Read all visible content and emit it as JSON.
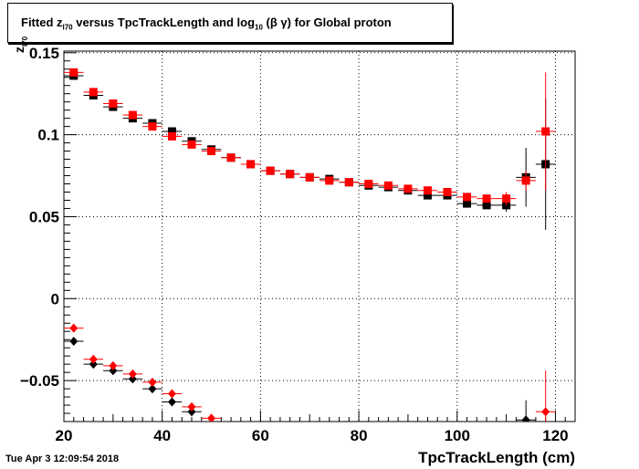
{
  "title": {
    "prefix": "Fitted  z",
    "sub1": "I70",
    "middle": "  versus TpcTrackLength and log",
    "sub2": "10",
    "suffix": " (β γ) for Global proton"
  },
  "datestamp": "Tue Apr  3 12:09:54 2018",
  "chart_data": {
    "type": "scatter",
    "xlabel": "TpcTrackLength (cm)",
    "ylabel": "z",
    "ylabel_sub": "I70",
    "xlim": [
      20,
      124
    ],
    "ylim": [
      -0.075,
      0.151
    ],
    "xticks": [
      20,
      40,
      60,
      80,
      100,
      120
    ],
    "yticks": [
      -0.05,
      0,
      0.05,
      0.1,
      0.15
    ],
    "ytick_labels": [
      "−0.05",
      "0",
      "0.05",
      "0.1",
      "0.15"
    ],
    "grid": true,
    "series": [
      {
        "marker": "square",
        "color": "#000000",
        "x": [
          22,
          26,
          30,
          34,
          38,
          42,
          46,
          50,
          54,
          58,
          62,
          66,
          70,
          74,
          78,
          82,
          86,
          90,
          94,
          98,
          102,
          106,
          110,
          114,
          118
        ],
        "y": [
          0.136,
          0.124,
          0.117,
          0.11,
          0.107,
          0.102,
          0.096,
          0.091,
          0.086,
          0.082,
          0.078,
          0.076,
          0.074,
          0.073,
          0.071,
          0.069,
          0.068,
          0.066,
          0.063,
          0.063,
          0.058,
          0.057,
          0.057,
          0.074,
          0.082
        ],
        "yerr": [
          0.001,
          0.001,
          0.001,
          0.001,
          0.001,
          0.001,
          0.001,
          0.001,
          0.001,
          0.001,
          0.001,
          0.001,
          0.001,
          0.001,
          0.001,
          0.001,
          0.001,
          0.001,
          0.001,
          0.001,
          0.002,
          0.002,
          0.004,
          0.018,
          0.04
        ]
      },
      {
        "marker": "square",
        "color": "#ff0000",
        "x": [
          22,
          26,
          30,
          34,
          38,
          42,
          46,
          50,
          54,
          58,
          62,
          66,
          70,
          74,
          78,
          82,
          86,
          90,
          94,
          98,
          102,
          106,
          110,
          114,
          118
        ],
        "y": [
          0.138,
          0.126,
          0.119,
          0.112,
          0.105,
          0.099,
          0.094,
          0.09,
          0.086,
          0.082,
          0.078,
          0.076,
          0.074,
          0.072,
          0.071,
          0.07,
          0.069,
          0.067,
          0.066,
          0.065,
          0.062,
          0.061,
          0.061,
          0.072,
          0.102
        ],
        "yerr": [
          0.001,
          0.001,
          0.001,
          0.001,
          0.001,
          0.001,
          0.001,
          0.001,
          0.001,
          0.001,
          0.001,
          0.001,
          0.001,
          0.001,
          0.001,
          0.001,
          0.001,
          0.001,
          0.001,
          0.001,
          0.002,
          0.002,
          0.004,
          0.006,
          0.036
        ]
      },
      {
        "marker": "diamond",
        "color": "#000000",
        "x": [
          22,
          26,
          30,
          34,
          38,
          42,
          46,
          114
        ],
        "y": [
          -0.026,
          -0.04,
          -0.044,
          -0.049,
          -0.055,
          -0.063,
          -0.069,
          -0.074
        ],
        "yerr": [
          0.001,
          0.001,
          0.001,
          0.001,
          0.001,
          0.001,
          0.001,
          0.012
        ]
      },
      {
        "marker": "diamond",
        "color": "#ff0000",
        "x": [
          22,
          26,
          30,
          34,
          38,
          42,
          46,
          50,
          118
        ],
        "y": [
          -0.018,
          -0.037,
          -0.041,
          -0.046,
          -0.051,
          -0.058,
          -0.066,
          -0.073,
          -0.069
        ],
        "yerr": [
          0.001,
          0.001,
          0.001,
          0.001,
          0.001,
          0.001,
          0.001,
          0.001,
          0.025
        ]
      }
    ]
  }
}
